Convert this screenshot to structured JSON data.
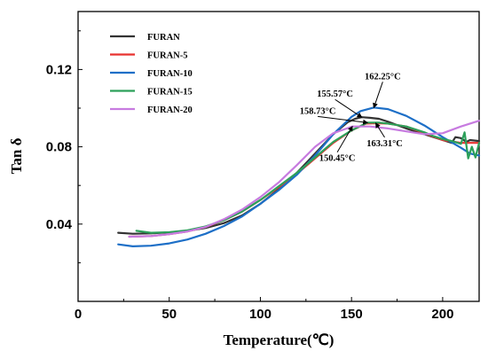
{
  "chart_data": {
    "type": "line",
    "xlabel": "Temperature(℃)",
    "ylabel": "Tan δ",
    "xlim": [
      0,
      220
    ],
    "ylim": [
      0,
      0.15
    ],
    "x_ticks": [
      "0",
      "50",
      "100",
      "150",
      "200"
    ],
    "x_tick_values": [
      0,
      50,
      100,
      150,
      200
    ],
    "y_ticks": [
      "0.04",
      "0.08",
      "0.12"
    ],
    "y_tick_values": [
      0.04,
      0.08,
      0.12
    ],
    "grid": false,
    "legend_position": "top-left",
    "series": [
      {
        "name": "FURAN",
        "color": "#333333",
        "x": [
          22,
          30,
          40,
          50,
          60,
          70,
          80,
          90,
          100,
          110,
          120,
          130,
          140,
          148,
          152,
          155.57,
          160,
          165,
          170,
          180,
          190,
          200,
          205,
          207,
          210,
          213,
          215,
          220
        ],
        "y": [
          0.0355,
          0.035,
          0.0352,
          0.0357,
          0.0365,
          0.038,
          0.0405,
          0.0445,
          0.0505,
          0.058,
          0.0665,
          0.0765,
          0.0865,
          0.0928,
          0.0945,
          0.0953,
          0.095,
          0.0945,
          0.093,
          0.0895,
          0.0865,
          0.0835,
          0.082,
          0.085,
          0.0845,
          0.0825,
          0.0835,
          0.083
        ]
      },
      {
        "name": "FURAN-5",
        "color": "#e8322f",
        "x": [
          28,
          40,
          50,
          60,
          70,
          80,
          90,
          100,
          110,
          120,
          130,
          140,
          150,
          158,
          163.31,
          170,
          180,
          190,
          200,
          210,
          220
        ],
        "y": [
          0.0335,
          0.0338,
          0.0348,
          0.0362,
          0.0385,
          0.042,
          0.0465,
          0.0525,
          0.059,
          0.066,
          0.074,
          0.082,
          0.0885,
          0.092,
          0.0922,
          0.092,
          0.0905,
          0.087,
          0.0835,
          0.082,
          0.082
        ]
      },
      {
        "name": "FURAN-10",
        "color": "#1d6fc7",
        "x": [
          22,
          30,
          40,
          50,
          60,
          70,
          80,
          90,
          100,
          110,
          120,
          130,
          140,
          150,
          155,
          162.25,
          170,
          180,
          190,
          200,
          210,
          215,
          220
        ],
        "y": [
          0.0295,
          0.0285,
          0.0288,
          0.03,
          0.032,
          0.035,
          0.039,
          0.044,
          0.0505,
          0.0575,
          0.0655,
          0.0755,
          0.0865,
          0.0955,
          0.0985,
          0.1003,
          0.0995,
          0.096,
          0.091,
          0.085,
          0.0795,
          0.0765,
          0.0755
        ]
      },
      {
        "name": "FURAN-15",
        "color": "#2ca05a",
        "x": [
          32,
          40,
          50,
          60,
          70,
          80,
          90,
          100,
          110,
          120,
          130,
          140,
          150,
          158.73,
          165,
          170,
          180,
          190,
          195,
          200,
          205,
          210,
          212,
          214,
          216,
          218,
          220
        ],
        "y": [
          0.0365,
          0.0355,
          0.0358,
          0.0368,
          0.0388,
          0.042,
          0.0465,
          0.0525,
          0.0595,
          0.0665,
          0.0745,
          0.0825,
          0.0885,
          0.0925,
          0.0925,
          0.092,
          0.0905,
          0.0875,
          0.0855,
          0.084,
          0.083,
          0.0815,
          0.0875,
          0.074,
          0.08,
          0.0745,
          0.082
        ]
      },
      {
        "name": "FURAN-20",
        "color": "#c77be0",
        "x": [
          28,
          40,
          50,
          60,
          70,
          80,
          90,
          100,
          110,
          120,
          130,
          140,
          150.45,
          160,
          170,
          180,
          190,
          200,
          210,
          220
        ],
        "y": [
          0.0335,
          0.0338,
          0.0348,
          0.0362,
          0.0385,
          0.0425,
          0.0475,
          0.054,
          0.0615,
          0.0705,
          0.08,
          0.087,
          0.0905,
          0.0905,
          0.0895,
          0.088,
          0.0865,
          0.087,
          0.0905,
          0.0935
        ]
      }
    ],
    "annotations": [
      {
        "text": "155.57°C",
        "x": 155.57,
        "y": 0.0953,
        "series": "FURAN"
      },
      {
        "text": "162.25°C",
        "x": 162.25,
        "y": 0.1003,
        "series": "FURAN-10"
      },
      {
        "text": "158.73°C",
        "x": 158.73,
        "y": 0.0925,
        "series": "FURAN-15"
      },
      {
        "text": "163.31°C",
        "x": 163.31,
        "y": 0.0922,
        "series": "FURAN-5"
      },
      {
        "text": "150.45°C",
        "x": 150.45,
        "y": 0.0905,
        "series": "FURAN-20"
      }
    ]
  }
}
